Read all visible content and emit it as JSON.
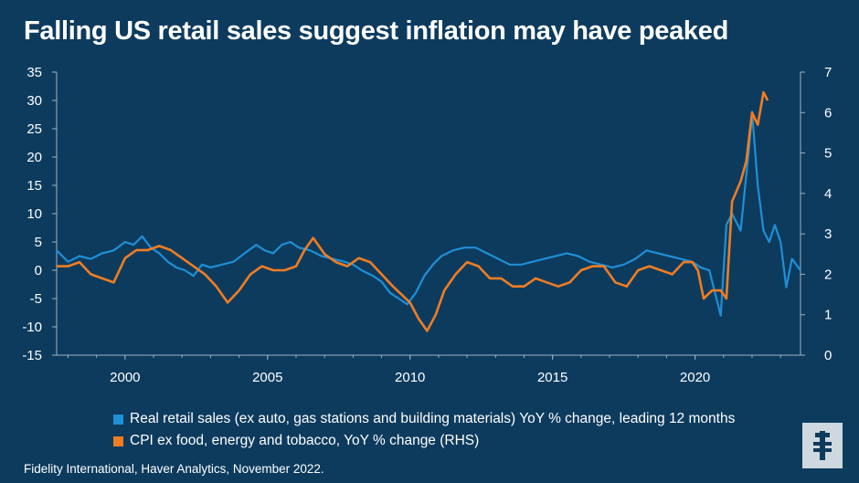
{
  "title": "Falling US retail sales suggest inflation may have peaked",
  "source": "Fidelity International, Haver Analytics, November 2022.",
  "legend": [
    {
      "label": "Real retail sales (ex auto, gas stations and building materials) YoY % change, leading 12 months",
      "color": "#1f8fd6"
    },
    {
      "label": "CPI ex food, energy and tobacco, YoY % change (RHS)",
      "color": "#f07d22"
    }
  ],
  "colors": {
    "background": "#0d3b5e",
    "blue": "#1f8fd6",
    "orange": "#f07d22",
    "axis": "#9fb3c4"
  },
  "logo_icon": "fidelity-logo-icon",
  "chart_data": {
    "type": "line",
    "x_ticks": [
      "2000",
      "2005",
      "2010",
      "2015",
      "2020"
    ],
    "y_left_ticks": [
      "35",
      "30",
      "25",
      "20",
      "15",
      "10",
      "5",
      "0",
      "-5",
      "-10",
      "-15"
    ],
    "y_right_ticks": [
      "7",
      "6",
      "5",
      "4",
      "3",
      "2",
      "1",
      "0"
    ],
    "y_left_lim": [
      -15,
      35
    ],
    "y_right_lim": [
      0,
      7
    ],
    "x_lim": [
      1997.6,
      2023.7
    ],
    "grid": false,
    "legend_position": "bottom",
    "series": [
      {
        "name": "Real retail sales (ex auto, gas stations and building materials) YoY % change, leading 12 months",
        "axis": "left",
        "color": "#1f8fd6",
        "x": [
          1997.6,
          1998.0,
          1998.4,
          1998.8,
          1999.2,
          1999.6,
          2000.0,
          2000.3,
          2000.6,
          2000.9,
          2001.2,
          2001.5,
          2001.8,
          2002.1,
          2002.4,
          2002.7,
          2003.0,
          2003.4,
          2003.8,
          2004.2,
          2004.6,
          2004.9,
          2005.2,
          2005.5,
          2005.8,
          2006.1,
          2006.5,
          2006.9,
          2007.3,
          2007.7,
          2008.0,
          2008.3,
          2008.7,
          2009.0,
          2009.3,
          2009.6,
          2009.9,
          2010.2,
          2010.5,
          2010.8,
          2011.1,
          2011.5,
          2011.9,
          2012.3,
          2012.7,
          2013.1,
          2013.5,
          2013.9,
          2014.3,
          2014.7,
          2015.1,
          2015.5,
          2015.9,
          2016.3,
          2016.7,
          2017.1,
          2017.5,
          2017.9,
          2018.3,
          2018.7,
          2019.1,
          2019.5,
          2019.9,
          2020.2,
          2020.5,
          2020.9,
          2021.1,
          2021.3,
          2021.6,
          2021.9,
          2022.0,
          2022.2,
          2022.4,
          2022.6,
          2022.8,
          2023.0,
          2023.2,
          2023.4,
          2023.7
        ],
        "y": [
          3.5,
          1.5,
          2.5,
          2.0,
          3.0,
          3.5,
          5.0,
          4.5,
          6.0,
          4.0,
          3.0,
          1.5,
          0.5,
          0.0,
          -1.0,
          1.0,
          0.5,
          1.0,
          1.5,
          3.0,
          4.5,
          3.5,
          3.0,
          4.5,
          5.0,
          4.0,
          3.5,
          2.5,
          2.0,
          1.5,
          1.0,
          0.0,
          -1.0,
          -2.0,
          -4.0,
          -5.0,
          -6.0,
          -4.0,
          -1.0,
          1.0,
          2.5,
          3.5,
          4.0,
          4.0,
          3.0,
          2.0,
          1.0,
          1.0,
          1.5,
          2.0,
          2.5,
          3.0,
          2.5,
          1.5,
          1.0,
          0.5,
          1.0,
          2.0,
          3.5,
          3.0,
          2.5,
          2.0,
          1.5,
          0.5,
          0.0,
          -8.0,
          8.0,
          10.0,
          7.0,
          22.0,
          28.0,
          15.0,
          7.0,
          5.0,
          8.0,
          5.0,
          -3.0,
          2.0,
          0.0
        ]
      },
      {
        "name": "CPI ex food, energy and tobacco, YoY % change (RHS)",
        "axis": "right",
        "color": "#f07d22",
        "x": [
          1997.6,
          1998.0,
          1998.4,
          1998.8,
          1999.2,
          1999.6,
          2000.0,
          2000.4,
          2000.8,
          2001.2,
          2001.6,
          2002.0,
          2002.4,
          2002.8,
          2003.2,
          2003.6,
          2004.0,
          2004.4,
          2004.8,
          2005.2,
          2005.6,
          2006.0,
          2006.3,
          2006.6,
          2007.0,
          2007.4,
          2007.8,
          2008.2,
          2008.6,
          2009.0,
          2009.4,
          2009.7,
          2010.0,
          2010.3,
          2010.6,
          2010.9,
          2011.2,
          2011.6,
          2012.0,
          2012.4,
          2012.8,
          2013.2,
          2013.6,
          2014.0,
          2014.4,
          2014.8,
          2015.2,
          2015.6,
          2016.0,
          2016.4,
          2016.8,
          2017.2,
          2017.6,
          2018.0,
          2018.4,
          2018.8,
          2019.2,
          2019.6,
          2019.9,
          2020.1,
          2020.3,
          2020.6,
          2020.9,
          2021.1,
          2021.3,
          2021.6,
          2021.8,
          2022.0,
          2022.2,
          2022.4,
          2022.55
        ],
        "y": [
          2.2,
          2.2,
          2.3,
          2.0,
          1.9,
          1.8,
          2.4,
          2.6,
          2.6,
          2.7,
          2.6,
          2.4,
          2.2,
          2.0,
          1.7,
          1.3,
          1.6,
          2.0,
          2.2,
          2.1,
          2.1,
          2.2,
          2.6,
          2.9,
          2.5,
          2.3,
          2.2,
          2.4,
          2.3,
          2.0,
          1.7,
          1.5,
          1.3,
          0.9,
          0.6,
          1.0,
          1.6,
          2.0,
          2.3,
          2.2,
          1.9,
          1.9,
          1.7,
          1.7,
          1.9,
          1.8,
          1.7,
          1.8,
          2.1,
          2.2,
          2.2,
          1.8,
          1.7,
          2.1,
          2.2,
          2.1,
          2.0,
          2.3,
          2.3,
          2.1,
          1.4,
          1.6,
          1.6,
          1.4,
          3.8,
          4.3,
          4.8,
          6.0,
          5.7,
          6.5,
          6.3
        ]
      }
    ]
  }
}
